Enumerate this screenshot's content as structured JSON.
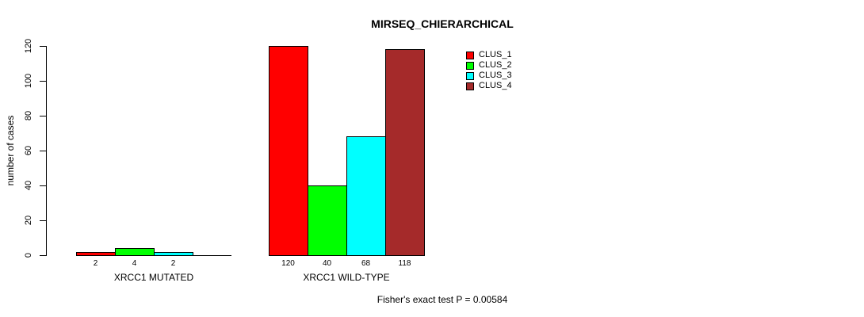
{
  "chart_data": {
    "type": "bar",
    "grouped": true,
    "title": "MIRSEQ_CHIERARCHICAL",
    "xlabel": "",
    "ylabel": "number of cases",
    "ylim": [
      0,
      120
    ],
    "yticks": [
      0,
      20,
      40,
      60,
      80,
      100,
      120
    ],
    "grid": false,
    "categories": [
      "XRCC1 MUTATED",
      "XRCC1 WILD-TYPE"
    ],
    "series": [
      {
        "name": "CLUS_1",
        "color": "#ff0000",
        "values": [
          2,
          120
        ]
      },
      {
        "name": "CLUS_2",
        "color": "#00ff00",
        "values": [
          4,
          40
        ]
      },
      {
        "name": "CLUS_3",
        "color": "#00ffff",
        "values": [
          2,
          68
        ]
      },
      {
        "name": "CLUS_4",
        "color": "#a52a2a",
        "values": [
          0,
          118
        ]
      }
    ],
    "bar_value_labels": [
      [
        "2",
        "4",
        "2",
        ""
      ],
      [
        "120",
        "40",
        "68",
        "118"
      ]
    ],
    "legend": {
      "position": "top-right",
      "entries": [
        {
          "label": "CLUS_1",
          "color": "#ff0000"
        },
        {
          "label": "CLUS_2",
          "color": "#00ff00"
        },
        {
          "label": "CLUS_3",
          "color": "#00ffff"
        },
        {
          "label": "CLUS_4",
          "color": "#a52a2a"
        }
      ]
    },
    "annotation": "Fisher's exact test P = 0.00584"
  }
}
